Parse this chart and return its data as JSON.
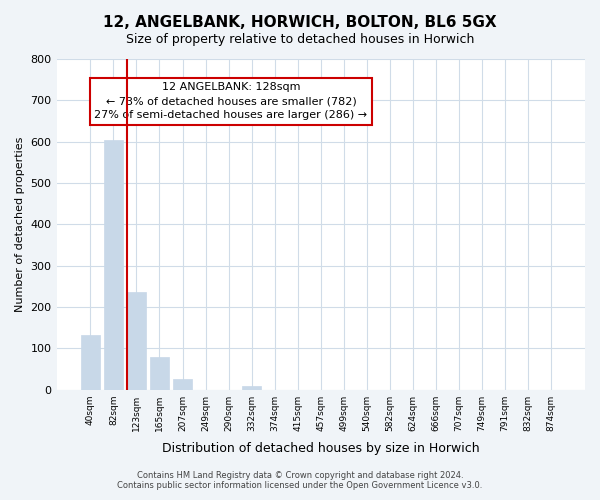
{
  "title": "12, ANGELBANK, HORWICH, BOLTON, BL6 5GX",
  "subtitle": "Size of property relative to detached houses in Horwich",
  "xlabel": "Distribution of detached houses by size in Horwich",
  "ylabel": "Number of detached properties",
  "bar_labels": [
    "40sqm",
    "82sqm",
    "123sqm",
    "165sqm",
    "207sqm",
    "249sqm",
    "290sqm",
    "332sqm",
    "374sqm",
    "415sqm",
    "457sqm",
    "499sqm",
    "540sqm",
    "582sqm",
    "624sqm",
    "666sqm",
    "707sqm",
    "749sqm",
    "791sqm",
    "832sqm",
    "874sqm"
  ],
  "bar_values": [
    133,
    604,
    236,
    78,
    25,
    0,
    0,
    10,
    0,
    0,
    0,
    0,
    0,
    0,
    0,
    0,
    0,
    0,
    0,
    0,
    0
  ],
  "bar_color": "#c8d8e8",
  "bar_edge_color": "#c8d8e8",
  "ylim": [
    0,
    800
  ],
  "yticks": [
    0,
    100,
    200,
    300,
    400,
    500,
    600,
    700,
    800
  ],
  "property_line_x": 2,
  "property_line_color": "#cc0000",
  "annotation_title": "12 ANGELBANK: 128sqm",
  "annotation_line1": "← 73% of detached houses are smaller (782)",
  "annotation_line2": "27% of semi-detached houses are larger (286) →",
  "annotation_box_color": "#ffffff",
  "annotation_box_edge": "#cc0000",
  "footer_line1": "Contains HM Land Registry data © Crown copyright and database right 2024.",
  "footer_line2": "Contains public sector information licensed under the Open Government Licence v3.0.",
  "bg_color": "#f0f4f8",
  "plot_bg_color": "#ffffff",
  "grid_color": "#d0dce8"
}
